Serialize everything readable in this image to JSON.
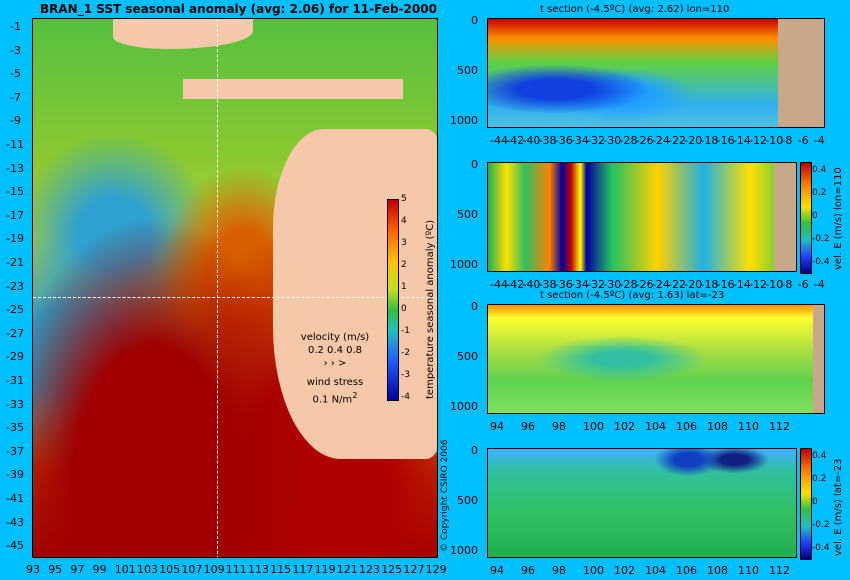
{
  "map": {
    "title": "BRAN_1 SST seasonal anomaly (avg: 2.06) for 11-Feb-2000",
    "lat_ticks": [
      "-1",
      "-3",
      "-5",
      "-7",
      "-9",
      "-11",
      "-13",
      "-15",
      "-17",
      "-19",
      "-21",
      "-23",
      "-25",
      "-27",
      "-29",
      "-31",
      "-33",
      "-35",
      "-37",
      "-39",
      "-41",
      "-43",
      "-45"
    ],
    "lon_ticks": [
      "93",
      "95",
      "97",
      "99",
      "101",
      "103",
      "105",
      "107",
      "109",
      "111",
      "113",
      "115",
      "117",
      "119",
      "121",
      "123",
      "125",
      "127",
      "129"
    ],
    "colorbar": {
      "label": "temperature seasonal anomaly (ºC)",
      "ticks": [
        "5",
        "4",
        "3",
        "2",
        "1",
        "0",
        "-1",
        "-2",
        "-3",
        "-4"
      ]
    },
    "legend": {
      "velocity_label": "velocity (m/s)",
      "velocity_values": "0.2 0.4 0.8",
      "velocity_arrows": "› › >",
      "wind_label": "wind stress",
      "wind_value": "0.1 N/m",
      "wind_sup": "2"
    },
    "copyright": "© Copyright CSIRO 2006"
  },
  "panels": [
    {
      "title": "t section (-4.5ºC) (avg: 2.62) lon=110",
      "yticks": [
        "0",
        "500",
        "1000"
      ],
      "xticks": [
        "-44",
        "-42",
        "-40",
        "-38",
        "-36",
        "-34",
        "-32",
        "-30",
        "-28",
        "-26",
        "-24",
        "-22",
        "-20",
        "-18",
        "-16",
        "-14",
        "-12",
        "-10",
        "-8",
        "-6",
        "-4"
      ]
    },
    {
      "title": "",
      "yticks": [
        "0",
        "500",
        "1000"
      ],
      "xticks": [
        "-44",
        "-42",
        "-40",
        "-38",
        "-36",
        "-34",
        "-32",
        "-30",
        "-28",
        "-26",
        "-24",
        "-22",
        "-20",
        "-18",
        "-16",
        "-14",
        "-12",
        "-10",
        "-8",
        "-6",
        "-4"
      ],
      "colorbar": {
        "label": "vel. E (m/s) lon=110",
        "ticks": [
          "0.4",
          "0.2",
          "0",
          "-0.2",
          "-0.4"
        ]
      }
    },
    {
      "title": "t section (-4.5ºC) (avg: 1.63) lat=-23",
      "yticks": [
        "0",
        "500",
        "1000"
      ],
      "xticks": [
        "94",
        "96",
        "98",
        "100",
        "102",
        "104",
        "106",
        "108",
        "110",
        "112"
      ]
    },
    {
      "title": "",
      "yticks": [
        "0",
        "500",
        "1000"
      ],
      "xticks": [
        "94",
        "96",
        "98",
        "100",
        "102",
        "104",
        "106",
        "108",
        "110",
        "112"
      ],
      "colorbar": {
        "label": "vel. E (m/s) lat=-23",
        "ticks": [
          "0.4",
          "0.2",
          "0",
          "-0.2",
          "-0.4"
        ]
      }
    }
  ],
  "chart_data": [
    {
      "type": "heatmap",
      "title": "BRAN_1 SST seasonal anomaly (avg: 2.06) for 11-Feb-2000",
      "x": [
        93,
        95,
        97,
        99,
        101,
        103,
        105,
        107,
        109,
        111,
        113,
        115,
        117,
        119,
        121,
        123,
        125,
        127,
        129
      ],
      "y": [
        -1,
        -3,
        -5,
        -7,
        -9,
        -11,
        -13,
        -15,
        -17,
        -19,
        -21,
        -23,
        -25,
        -27,
        -29,
        -31,
        -33,
        -35,
        -37,
        -39,
        -41,
        -43,
        -45
      ],
      "colorbar_label": "temperature seasonal anomaly (ºC)",
      "colorbar_range": [
        -4,
        5
      ]
    },
    {
      "type": "heatmap",
      "title": "t section (-4.5ºC) (avg: 2.62) lon=110",
      "x": [
        -44,
        -42,
        -40,
        -38,
        -36,
        -34,
        -32,
        -30,
        -28,
        -26,
        -24,
        -22,
        -20,
        -18,
        -16,
        -14,
        -12,
        -10,
        -8,
        -6,
        -4
      ],
      "y": [
        0,
        500,
        1000
      ]
    },
    {
      "type": "heatmap",
      "title": "",
      "x": [
        -44,
        -42,
        -40,
        -38,
        -36,
        -34,
        -32,
        -30,
        -28,
        -26,
        -24,
        -22,
        -20,
        -18,
        -16,
        -14,
        -12,
        -10,
        -8,
        -6,
        -4
      ],
      "y": [
        0,
        500,
        1000
      ],
      "colorbar_label": "vel. E (m/s) lon=110",
      "colorbar_range": [
        -0.4,
        0.4
      ]
    },
    {
      "type": "heatmap",
      "title": "t section (-4.5ºC) (avg: 1.63) lat=-23",
      "x": [
        94,
        96,
        98,
        100,
        102,
        104,
        106,
        108,
        110,
        112
      ],
      "y": [
        0,
        500,
        1000
      ]
    },
    {
      "type": "heatmap",
      "title": "",
      "x": [
        94,
        96,
        98,
        100,
        102,
        104,
        106,
        108,
        110,
        112
      ],
      "y": [
        0,
        500,
        1000
      ],
      "colorbar_label": "vel. E (m/s) lat=-23",
      "colorbar_range": [
        -0.4,
        0.4
      ]
    }
  ]
}
